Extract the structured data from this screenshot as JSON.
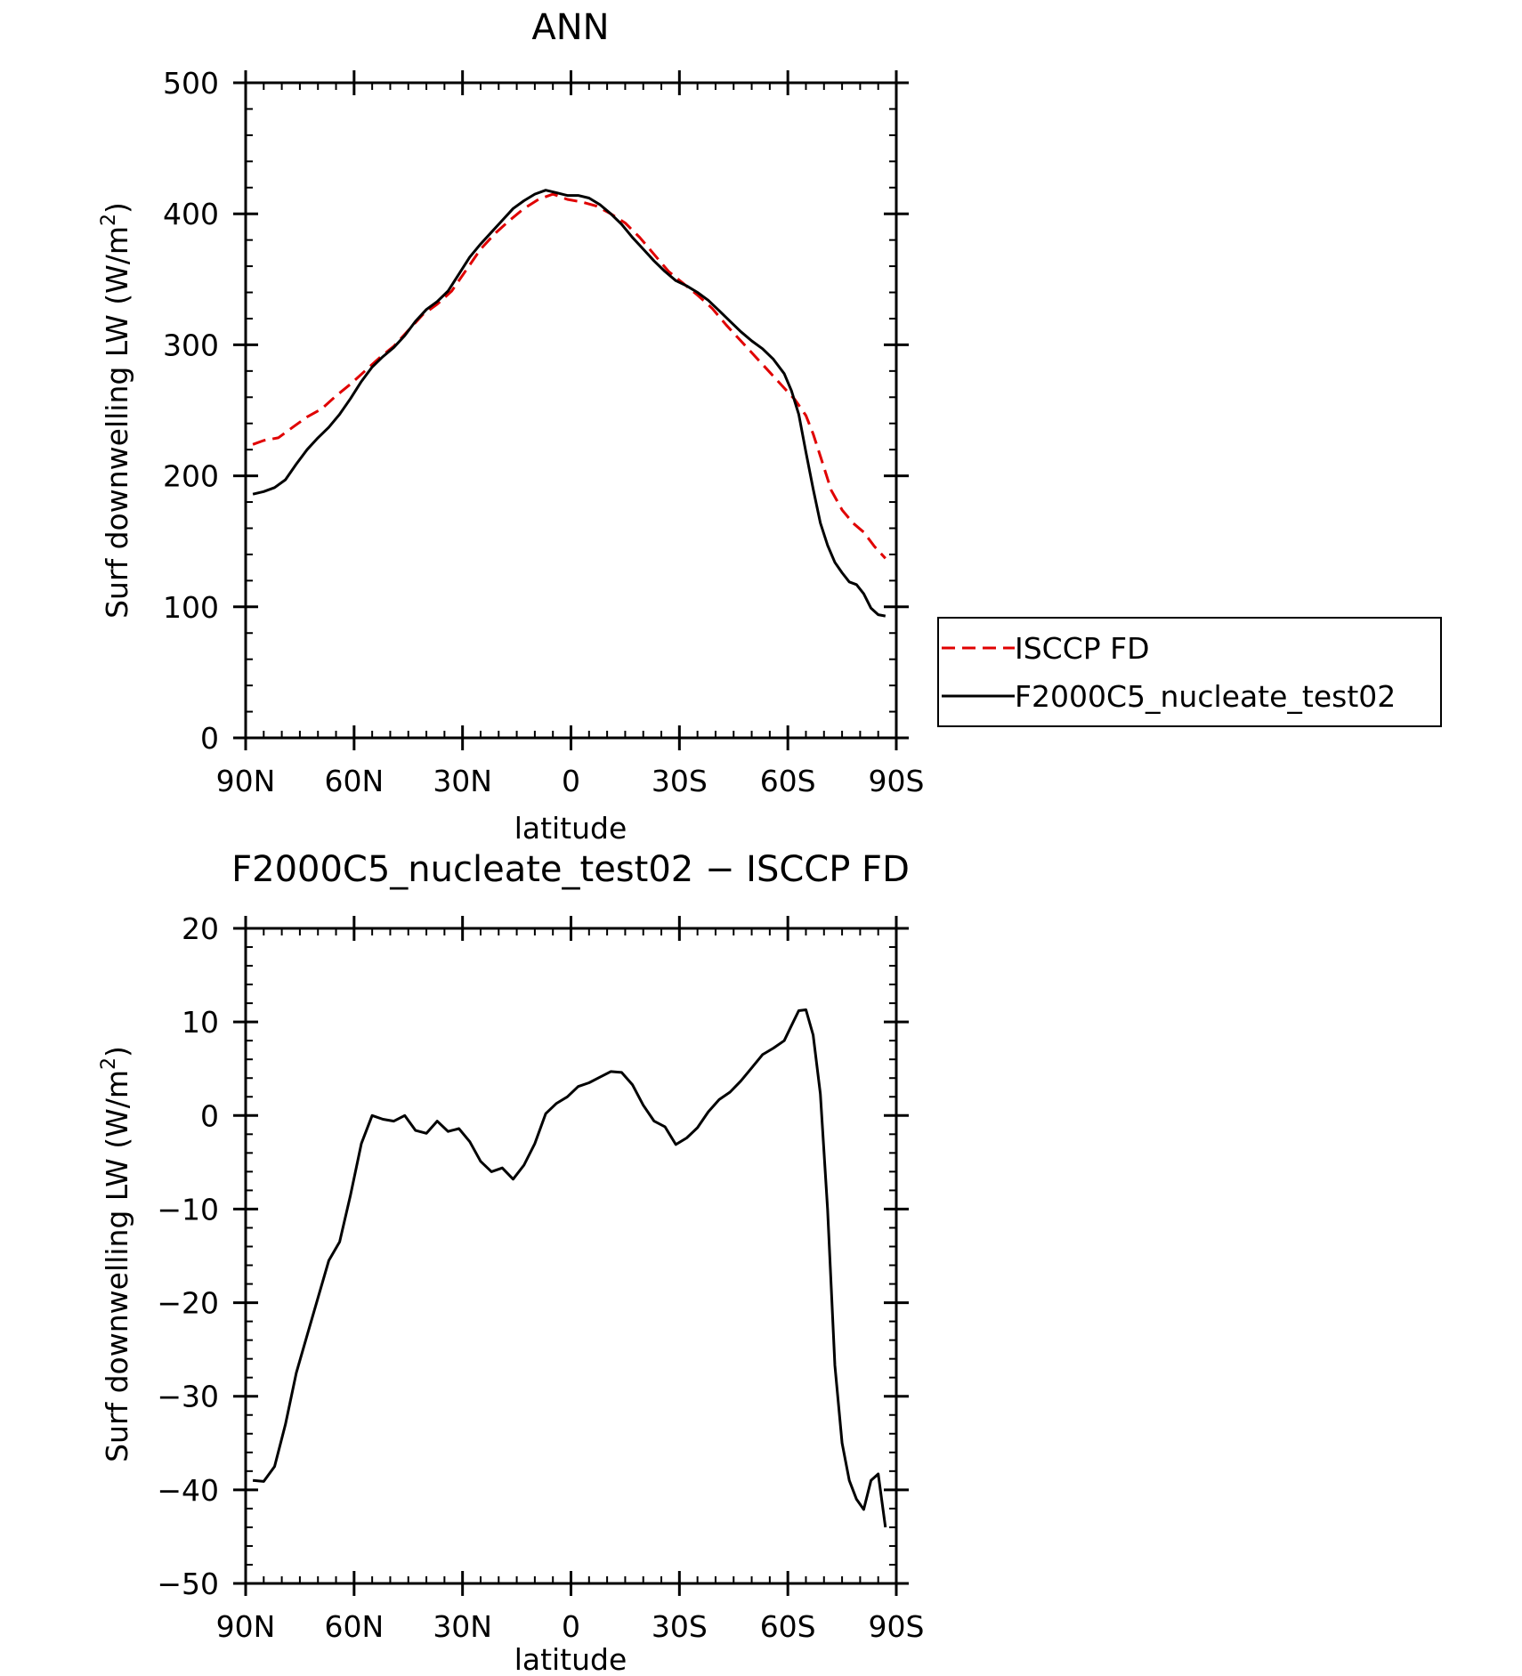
{
  "colors": {
    "background": "#ffffff",
    "axis": "#000000",
    "isccp": "#e00000",
    "model": "#000000"
  },
  "chart_data": [
    {
      "type": "line",
      "title": "ANN",
      "xlabel": "latitude",
      "ylabel_prefix": "Surf downwelling LW (W/m",
      "ylabel_sup": "2",
      "ylabel_suffix": ")",
      "xlim": [
        -90,
        90
      ],
      "ylim": [
        0,
        500
      ],
      "x_ticks": [
        -90,
        -60,
        -30,
        0,
        30,
        60,
        90
      ],
      "x_tick_labels": [
        "90N",
        "60N",
        "30N",
        "0",
        "30S",
        "60S",
        "90S"
      ],
      "y_ticks": [
        0,
        100,
        200,
        300,
        400,
        500
      ],
      "y_tick_labels": [
        "0",
        "100",
        "200",
        "300",
        "400",
        "500"
      ],
      "grid": false,
      "legend_position": "right",
      "series": [
        {
          "name": "ISCCP FD",
          "color": "#e00000",
          "style": "dashed",
          "x": [
            -88,
            -85,
            -81,
            -77,
            -73,
            -69,
            -65,
            -61,
            -57,
            -53,
            -49,
            -45,
            -41,
            -37,
            -33,
            -29,
            -25,
            -21,
            -17,
            -13,
            -9,
            -5,
            -1,
            3,
            7,
            11,
            15,
            19,
            23,
            27,
            31,
            35,
            39,
            43,
            47,
            51,
            55,
            59,
            62,
            65,
            67,
            69,
            72,
            75,
            78,
            81,
            84,
            87
          ],
          "y": [
            224,
            227,
            229,
            237,
            245,
            251,
            261,
            270,
            280,
            290,
            299,
            311,
            323,
            331,
            341,
            357,
            373,
            385,
            395,
            404,
            411,
            415,
            411,
            409,
            406,
            400,
            393,
            382,
            369,
            356,
            347,
            338,
            328,
            315,
            303,
            291,
            279,
            267,
            258,
            246,
            232,
            215,
            189,
            174,
            164,
            157,
            146,
            137
          ]
        },
        {
          "name": "F2000C5_nucleate_test02",
          "color": "#000000",
          "style": "solid",
          "x": [
            -88,
            -85,
            -82,
            -79,
            -76,
            -73,
            -70,
            -67,
            -64,
            -61,
            -58,
            -55,
            -52,
            -49,
            -46,
            -43,
            -40,
            -37,
            -34,
            -31,
            -28,
            -25,
            -22,
            -19,
            -16,
            -13,
            -10,
            -7,
            -4,
            -1,
            2,
            5,
            8,
            11,
            14,
            17,
            20,
            23,
            26,
            29,
            32,
            35,
            38,
            41,
            44,
            47,
            50,
            53,
            56,
            59,
            61,
            63,
            65,
            67,
            69,
            71,
            73,
            75,
            77,
            79,
            81,
            83,
            85,
            87
          ],
          "y": [
            186,
            188,
            191,
            197,
            209,
            220,
            229,
            237,
            247,
            259,
            272,
            283,
            291,
            298,
            307,
            318,
            327,
            333,
            341,
            354,
            367,
            377,
            386,
            395,
            404,
            410,
            415,
            418,
            416,
            414,
            414,
            412,
            407,
            400,
            392,
            382,
            373,
            364,
            356,
            349,
            345,
            340,
            334,
            326,
            318,
            310,
            303,
            297,
            289,
            278,
            265,
            247,
            218,
            190,
            164,
            147,
            134,
            126,
            119,
            117,
            110,
            99,
            94,
            93
          ]
        }
      ]
    },
    {
      "type": "line",
      "title": "F2000C5_nucleate_test02 − ISCCP FD",
      "xlabel": "latitude",
      "ylabel_prefix": "Surf downwelling LW (W/m",
      "ylabel_sup": "2",
      "ylabel_suffix": ")",
      "xlim": [
        -90,
        90
      ],
      "ylim": [
        -50,
        20
      ],
      "x_ticks": [
        -90,
        -60,
        -30,
        0,
        30,
        60,
        90
      ],
      "x_tick_labels": [
        "90N",
        "60N",
        "30N",
        "0",
        "30S",
        "60S",
        "90S"
      ],
      "y_ticks": [
        -50,
        -40,
        -30,
        -20,
        -10,
        0,
        10,
        20
      ],
      "y_tick_labels": [
        "−50",
        "−40",
        "−30",
        "−20",
        "−10",
        "0",
        "10",
        "20"
      ],
      "grid": false,
      "series": [
        {
          "color": "#000000",
          "style": "solid",
          "x": [
            -88,
            -85,
            -82,
            -79,
            -76,
            -73,
            -70,
            -67,
            -64,
            -61,
            -58,
            -55,
            -52,
            -49,
            -46,
            -43,
            -40,
            -37,
            -34,
            -31,
            -28,
            -25,
            -22,
            -19,
            -16,
            -13,
            -10,
            -7,
            -4,
            -1,
            2,
            5,
            8,
            11,
            14,
            17,
            20,
            23,
            26,
            29,
            32,
            35,
            38,
            41,
            44,
            47,
            50,
            53,
            56,
            59,
            61,
            63,
            65,
            67,
            69,
            71,
            73,
            75,
            77,
            79,
            81,
            83,
            85,
            87
          ],
          "y": [
            -39.0,
            -39.1,
            -37.5,
            -33.0,
            -27.5,
            -23.5,
            -19.5,
            -15.5,
            -13.5,
            -8.5,
            -3.0,
            0.0,
            -0.4,
            -0.6,
            0.0,
            -1.6,
            -1.9,
            -0.6,
            -1.7,
            -1.4,
            -2.8,
            -4.9,
            -6.0,
            -5.6,
            -6.8,
            -5.3,
            -3.0,
            0.2,
            1.3,
            2.0,
            3.1,
            3.5,
            4.1,
            4.7,
            4.6,
            3.3,
            1.1,
            -0.6,
            -1.2,
            -3.1,
            -2.4,
            -1.3,
            0.4,
            1.7,
            2.5,
            3.7,
            5.1,
            6.5,
            7.2,
            8.0,
            9.6,
            11.2,
            11.3,
            8.6,
            2.3,
            -10.0,
            -26.7,
            -35.0,
            -39.0,
            -41.0,
            -42.1,
            -39.0,
            -38.3,
            -44.0
          ]
        }
      ]
    }
  ]
}
